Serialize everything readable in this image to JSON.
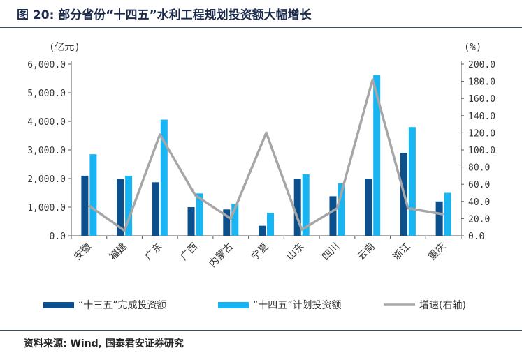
{
  "figure": {
    "title": "图 20: 部分省份“十四五”水利工程规划投资额大幅增长",
    "source": "资料来源: Wind, 国泰君安证券研究"
  },
  "chart_data": {
    "type": "bar",
    "categories": [
      "安徽",
      "福建",
      "广东",
      "广西",
      "内蒙古",
      "宁夏",
      "山东",
      "四川",
      "云南",
      "浙江",
      "重庆"
    ],
    "series": [
      {
        "name": "“十三五”完成投资额",
        "type": "bar",
        "axis": "left",
        "color": "#0b4f8c",
        "values": [
          2100,
          1980,
          1870,
          1000,
          920,
          350,
          2000,
          1380,
          2000,
          2900,
          1200
        ]
      },
      {
        "name": "“十四五”计划投资额",
        "type": "bar",
        "axis": "left",
        "color": "#19b5f2",
        "values": [
          2850,
          2100,
          4060,
          1480,
          1120,
          800,
          2150,
          1830,
          5620,
          3800,
          1500
        ]
      },
      {
        "name": "增速(右轴)",
        "type": "line",
        "axis": "right",
        "color": "#a6a6a6",
        "values": [
          35,
          6,
          118,
          47,
          20,
          120,
          7,
          32,
          182,
          32,
          25
        ]
      }
    ],
    "yleft": {
      "label": "(亿元)",
      "ylim": [
        0,
        6000
      ],
      "ticks": [
        "0.0",
        "1,000.0",
        "2,000.0",
        "3,000.0",
        "4,000.0",
        "5,000.0",
        "6,000.0"
      ]
    },
    "yright": {
      "label": "(%)",
      "ylim": [
        0,
        200
      ],
      "ticks": [
        "0.0",
        "20.0",
        "40.0",
        "60.0",
        "80.0",
        "100.0",
        "120.0",
        "140.0",
        "160.0",
        "180.0",
        "200.0"
      ]
    },
    "legend_position": "bottom",
    "grid": false
  }
}
